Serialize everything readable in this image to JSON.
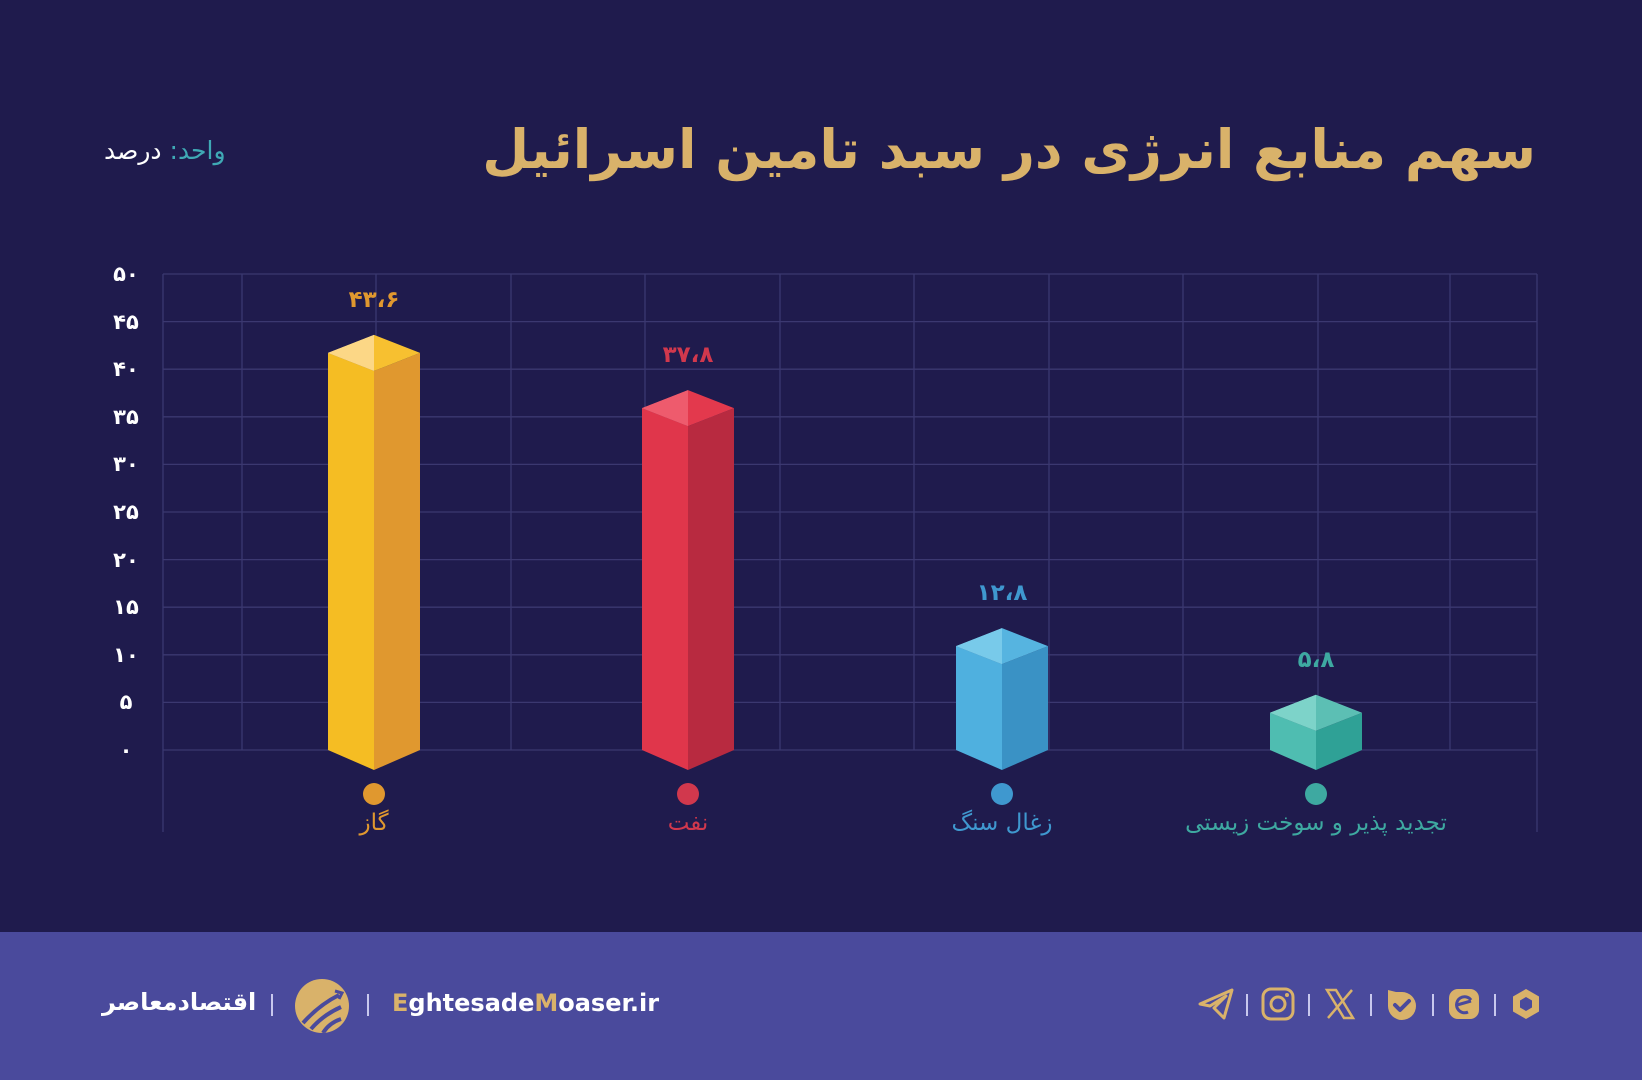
{
  "header": {
    "title": "سهم منابع انرژی در سبد تامین اسرائیل",
    "unit_key": "واحد:",
    "unit_value": " درصد"
  },
  "chart_data": {
    "type": "bar",
    "title": "سهم منابع انرژی در سبد تامین اسرائیل",
    "unit": "درصد",
    "xlabel": "",
    "ylabel": "",
    "categories": [
      "گاز",
      "نفت",
      "زغال سنگ",
      "تجدید پذیر و سوخت زیستی"
    ],
    "values": [
      43.6,
      37.8,
      12.8,
      5.8
    ],
    "value_labels": [
      "۴۳،۶",
      "۳۷،۸",
      "۱۲،۸",
      "۵،۸"
    ],
    "colors": [
      "#f5bd23",
      "#e0364b",
      "#4fb0df",
      "#4fbdb1"
    ],
    "ylim": [
      0,
      50
    ],
    "yticks": [
      0,
      5,
      10,
      15,
      20,
      25,
      30,
      35,
      40,
      45,
      50
    ],
    "ytick_labels": [
      "۰",
      "۵",
      "۱۰",
      "۱۵",
      "۲۰",
      "۲۵",
      "۳۰",
      "۳۵",
      "۴۰",
      "۴۵",
      "۵۰"
    ],
    "grid": true,
    "legend": "none (category dots beneath bars)"
  },
  "footer": {
    "brand_fa": "اقتصادمعاصر",
    "brand_en_e": "E",
    "brand_en_1": "ghtesade",
    "brand_en_m": "M",
    "brand_en_2": "oaser.ir",
    "social_icons": [
      "telegram-icon",
      "instagram-icon",
      "x-icon",
      "bale-icon",
      "eitaa-icon",
      "rubika-icon"
    ]
  },
  "colors": {
    "background": "#1f1b4d",
    "footer": "#4a4a9c",
    "title": "#d9b26a",
    "grid": "#3b3870"
  }
}
